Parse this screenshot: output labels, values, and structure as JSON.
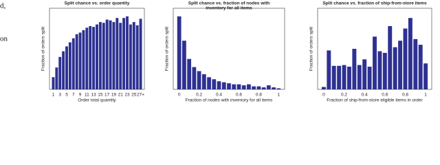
{
  "page_text": [
    "d,",
    "on"
  ],
  "chart_data": [
    {
      "type": "bar",
      "title": [
        "Split chance vs. order quantity"
      ],
      "xlabel": "Order total quantity",
      "ylabel": "Fraction of orders split",
      "categories": [
        "1",
        null,
        "3",
        null,
        "5",
        null,
        "7",
        null,
        "9",
        null,
        "11",
        null,
        "13",
        null,
        "15",
        null,
        "17",
        null,
        "19",
        null,
        "21",
        null,
        "23",
        null,
        "25",
        null,
        "27+"
      ],
      "values": [
        0.15,
        0.27,
        0.4,
        0.47,
        0.53,
        0.58,
        0.63,
        0.68,
        0.7,
        0.73,
        0.76,
        0.78,
        0.77,
        0.8,
        0.83,
        0.82,
        0.86,
        0.85,
        0.83,
        0.88,
        0.82,
        0.88,
        0.9,
        0.8,
        0.83,
        0.79,
        0.87
      ],
      "color": "#2e3192",
      "ylim": [
        0,
        1
      ]
    },
    {
      "type": "bar",
      "title": [
        "Split chance vs. fraction of nodes with",
        "inventory for all items"
      ],
      "xlabel": "Fraction of nodes with inventory for all items",
      "ylabel": "Fraction of orders split",
      "x": [
        0,
        0.05,
        0.1,
        0.15,
        0.2,
        0.25,
        0.3,
        0.35,
        0.4,
        0.45,
        0.5,
        0.55,
        0.6,
        0.65,
        0.7,
        0.75,
        0.8,
        0.85,
        0.9,
        0.95,
        1
      ],
      "values": [
        0.72,
        0.48,
        0.3,
        0.22,
        0.18,
        0.15,
        0.12,
        0.1,
        0.08,
        0.07,
        0.06,
        0.05,
        0.05,
        0.04,
        0.05,
        0.03,
        0.03,
        0.02,
        0.04,
        0.02,
        0.01
      ],
      "color": "#2e3192",
      "xlim": [
        -0.06,
        1.06
      ],
      "xticks": [
        0,
        0.2,
        0.4,
        0.6,
        0.8,
        1
      ],
      "ylim": [
        0,
        0.8
      ]
    },
    {
      "type": "bar",
      "title": [
        "Split chance vs. fraction of ship-from-store items"
      ],
      "xlabel": "Fraction of ship-from-store eligible items in order",
      "ylabel": "Fraction of orders split",
      "x": [
        0,
        0.05,
        0.1,
        0.15,
        0.2,
        0.25,
        0.3,
        0.35,
        0.4,
        0.45,
        0.5,
        0.55,
        0.6,
        0.65,
        0.7,
        0.75,
        0.8,
        0.85,
        0.9,
        0.95,
        1
      ],
      "values": [
        0.03,
        0.48,
        0.29,
        0.29,
        0.3,
        0.28,
        0.5,
        0.3,
        0.37,
        0.28,
        0.65,
        0.47,
        0.45,
        0.78,
        0.52,
        0.6,
        0.75,
        0.88,
        0.62,
        0.55,
        0.32
      ],
      "color": "#2e3192",
      "xlim": [
        -0.06,
        1.06
      ],
      "xticks": [
        0,
        0.2,
        0.4,
        0.6,
        0.8,
        1
      ],
      "ylim": [
        0,
        1
      ]
    }
  ]
}
